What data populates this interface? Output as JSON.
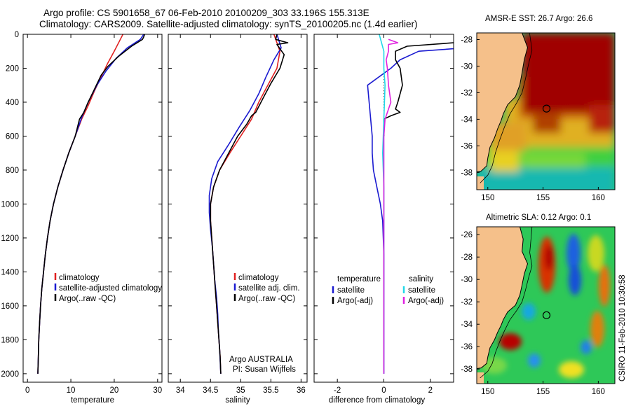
{
  "header": {
    "line1": "Argo profile: CS 5901658_67 06-Feb-2010 20100209_303 33.196S 155.313E",
    "line2": "Climatology: CARS2009. Satellite-adjusted climatology: synTS_20100205.nc (1.4d earlier)"
  },
  "colors": {
    "climatology": "#e02020",
    "satellite": "#1a1ad0",
    "argo": "#000000",
    "sal_satellite": "#20d8e8",
    "sal_argo": "#e020e0",
    "land": "#f5c08a"
  },
  "chart_data": [
    {
      "type": "line",
      "name": "temperature-profile",
      "xlabel": "temperature",
      "xlim": [
        -1,
        31
      ],
      "ylim": [
        2050,
        0
      ],
      "xticks": [
        0,
        10,
        20,
        30
      ],
      "xtick_labels": [
        "0",
        "10",
        "20",
        "30"
      ],
      "yticks": [
        0,
        200,
        400,
        600,
        800,
        1000,
        1200,
        1400,
        1600,
        1800,
        2000
      ],
      "ytick_labels": [
        "0",
        "200",
        "400",
        "600",
        "800",
        "1000",
        "1200",
        "1400",
        "1600",
        "1800",
        "2000"
      ],
      "legend": [
        "climatology",
        "satellite-adjusted climatology",
        "Argo(..raw -QC)"
      ],
      "series": [
        {
          "name": "climatology",
          "color": "red",
          "points": [
            [
              22,
              0
            ],
            [
              21.2,
              40
            ],
            [
              20,
              100
            ],
            [
              18.5,
              170
            ],
            [
              17,
              250
            ],
            [
              15.5,
              330
            ],
            [
              14,
              420
            ],
            [
              12.5,
              500
            ],
            [
              11,
              600
            ],
            [
              9.5,
              700
            ],
            [
              8.2,
              800
            ],
            [
              7,
              900
            ],
            [
              6,
              1000
            ],
            [
              5.2,
              1100
            ],
            [
              4.6,
              1200
            ],
            [
              4.1,
              1300
            ],
            [
              3.7,
              1400
            ],
            [
              3.3,
              1500
            ],
            [
              3.0,
              1600
            ],
            [
              2.8,
              1700
            ],
            [
              2.6,
              1800
            ],
            [
              2.5,
              1900
            ],
            [
              2.4,
              2000
            ]
          ]
        },
        {
          "name": "satellite-adjusted climatology",
          "color": "blue",
          "points": [
            [
              26.8,
              0
            ],
            [
              26,
              30
            ],
            [
              23,
              80
            ],
            [
              20.5,
              140
            ],
            [
              18,
              220
            ],
            [
              16,
              300
            ],
            [
              14,
              400
            ],
            [
              12.5,
              490
            ],
            [
              11,
              600
            ],
            [
              9.5,
              700
            ],
            [
              8.2,
              800
            ],
            [
              7,
              900
            ],
            [
              6,
              1000
            ],
            [
              5.2,
              1100
            ],
            [
              4.6,
              1200
            ],
            [
              4.1,
              1300
            ],
            [
              3.7,
              1400
            ],
            [
              3.3,
              1500
            ],
            [
              3.0,
              1600
            ],
            [
              2.8,
              1700
            ],
            [
              2.6,
              1800
            ],
            [
              2.5,
              1900
            ],
            [
              2.4,
              2000
            ]
          ]
        },
        {
          "name": "Argo(..raw -QC)",
          "color": "black",
          "points": [
            [
              27,
              0
            ],
            [
              26.8,
              15
            ],
            [
              26.5,
              30
            ],
            [
              24,
              70
            ],
            [
              21,
              130
            ],
            [
              18.5,
              190
            ],
            [
              17,
              240
            ],
            [
              15.5,
              320
            ],
            [
              14,
              400
            ],
            [
              13,
              460
            ],
            [
              12,
              500
            ],
            [
              11,
              600
            ],
            [
              9.5,
              700
            ],
            [
              8.2,
              800
            ],
            [
              7,
              900
            ],
            [
              6,
              1000
            ],
            [
              5.2,
              1100
            ],
            [
              4.6,
              1200
            ],
            [
              4.1,
              1300
            ],
            [
              3.7,
              1400
            ],
            [
              3.3,
              1500
            ],
            [
              3.0,
              1600
            ],
            [
              2.8,
              1700
            ],
            [
              2.6,
              1800
            ],
            [
              2.5,
              1900
            ],
            [
              2.4,
              2000
            ]
          ]
        }
      ]
    },
    {
      "type": "line",
      "name": "salinity-profile",
      "xlabel": "salinity",
      "xlim": [
        33.8,
        36.1
      ],
      "ylim": [
        2050,
        0
      ],
      "xticks": [
        34,
        34.5,
        35,
        35.5,
        36
      ],
      "xtick_labels": [
        "34",
        "34.5",
        "35",
        "35.5",
        "36"
      ],
      "legend": [
        "climatology",
        "satellite adj. clim.",
        "Argo(..raw -QC)"
      ],
      "annotation": [
        "Argo AUSTRALIA",
        "PI: Susan Wijffels"
      ],
      "series": [
        {
          "name": "climatology",
          "color": "red",
          "points": [
            [
              35.55,
              0
            ],
            [
              35.65,
              100
            ],
            [
              35.6,
              200
            ],
            [
              35.45,
              300
            ],
            [
              35.3,
              400
            ],
            [
              35.18,
              500
            ],
            [
              35.0,
              600
            ],
            [
              34.82,
              700
            ],
            [
              34.65,
              800
            ],
            [
              34.55,
              900
            ],
            [
              34.5,
              1000
            ],
            [
              34.5,
              1100
            ],
            [
              34.52,
              1200
            ],
            [
              34.54,
              1300
            ],
            [
              34.56,
              1400
            ],
            [
              34.58,
              1500
            ],
            [
              34.6,
              1600
            ],
            [
              34.62,
              1700
            ],
            [
              34.64,
              1800
            ],
            [
              34.66,
              1900
            ],
            [
              34.67,
              2000
            ]
          ]
        },
        {
          "name": "satellite adj. clim.",
          "color": "blue",
          "points": [
            [
              35.6,
              0
            ],
            [
              35.67,
              80
            ],
            [
              35.55,
              150
            ],
            [
              35.42,
              250
            ],
            [
              35.3,
              350
            ],
            [
              35.15,
              450
            ],
            [
              34.97,
              550
            ],
            [
              34.8,
              650
            ],
            [
              34.62,
              750
            ],
            [
              34.52,
              850
            ],
            [
              34.48,
              950
            ],
            [
              34.48,
              1050
            ],
            [
              34.5,
              1150
            ],
            [
              34.53,
              1250
            ],
            [
              34.55,
              1350
            ],
            [
              34.57,
              1450
            ],
            [
              34.6,
              1550
            ],
            [
              34.62,
              1650
            ],
            [
              34.63,
              1750
            ],
            [
              34.65,
              1850
            ],
            [
              34.67,
              2000
            ]
          ]
        },
        {
          "name": "Argo(..raw -QC)",
          "color": "black",
          "points": [
            [
              35.6,
              0
            ],
            [
              35.58,
              30
            ],
            [
              35.78,
              50
            ],
            [
              35.6,
              60
            ],
            [
              35.72,
              120
            ],
            [
              35.65,
              200
            ],
            [
              35.5,
              290
            ],
            [
              35.38,
              370
            ],
            [
              35.25,
              460
            ],
            [
              35.18,
              480
            ],
            [
              35.1,
              530
            ],
            [
              34.95,
              600
            ],
            [
              34.8,
              700
            ],
            [
              34.65,
              800
            ],
            [
              34.55,
              900
            ],
            [
              34.5,
              1000
            ],
            [
              34.5,
              1100
            ],
            [
              34.52,
              1200
            ],
            [
              34.54,
              1300
            ],
            [
              34.56,
              1400
            ],
            [
              34.58,
              1500
            ],
            [
              34.6,
              1600
            ],
            [
              34.62,
              1700
            ],
            [
              34.64,
              1800
            ],
            [
              34.66,
              1900
            ],
            [
              34.67,
              2000
            ]
          ]
        }
      ]
    },
    {
      "type": "line",
      "name": "difference-profile",
      "xlabel": "difference from climatology",
      "xlim": [
        -3,
        3
      ],
      "ylim": [
        2050,
        0
      ],
      "xticks": [
        -2,
        0,
        2
      ],
      "xtick_labels": [
        "-2",
        "0",
        "2"
      ],
      "legend_headers": [
        "temperature",
        "salinity"
      ],
      "legend_temperature": [
        "satellite",
        "Argo(-adj)"
      ],
      "legend_salinity": [
        "satellite",
        "Argo(-adj)"
      ],
      "series": [
        {
          "name": "temperature satellite",
          "color": "blue",
          "points": [
            [
              4.8,
              0
            ],
            [
              3.5,
              80
            ],
            [
              1.5,
              100
            ],
            [
              0.7,
              150
            ],
            [
              0.3,
              200
            ],
            [
              -0.7,
              300
            ],
            [
              -0.6,
              450
            ],
            [
              -0.5,
              600
            ],
            [
              -0.5,
              700
            ],
            [
              -0.45,
              800
            ],
            [
              -0.3,
              900
            ],
            [
              -0.15,
              1000
            ],
            [
              -0.05,
              1100
            ],
            [
              0,
              1300
            ],
            [
              0,
              1500
            ],
            [
              0,
              1800
            ],
            [
              0,
              2000
            ]
          ]
        },
        {
          "name": "temperature Argo(-adj)",
          "color": "black",
          "points": [
            [
              3,
              50
            ],
            [
              1,
              70
            ],
            [
              0.5,
              100
            ],
            [
              0.5,
              150
            ],
            [
              0.7,
              200
            ],
            [
              0.8,
              300
            ],
            [
              0.6,
              400
            ],
            [
              0.5,
              440
            ],
            [
              0.7,
              460
            ],
            [
              0.3,
              480
            ],
            [
              0,
              500
            ],
            [
              0,
              600
            ]
          ]
        },
        {
          "name": "salinity satellite",
          "color": "cyan",
          "points": [
            [
              -0.2,
              0
            ],
            [
              0,
              100
            ],
            [
              0,
              200
            ],
            [
              0.05,
              300
            ],
            [
              0,
              500
            ],
            [
              -0.05,
              700
            ],
            [
              0,
              900
            ],
            [
              0,
              1100
            ],
            [
              0,
              1300
            ],
            [
              0,
              1500
            ],
            [
              0,
              1700
            ],
            [
              0,
              1900
            ],
            [
              0,
              2000
            ]
          ]
        },
        {
          "name": "salinity Argo(-adj)",
          "color": "magenta",
          "points": [
            [
              0.2,
              30
            ],
            [
              0.6,
              50
            ],
            [
              0.2,
              60
            ],
            [
              0.2,
              100
            ],
            [
              0.1,
              150
            ],
            [
              0.15,
              200
            ],
            [
              0.2,
              300
            ],
            [
              0.3,
              400
            ],
            [
              0.05,
              500
            ],
            [
              0,
              600
            ],
            [
              0,
              800
            ],
            [
              0,
              1000
            ],
            [
              0,
              1300
            ],
            [
              0,
              1600
            ],
            [
              0,
              2000
            ]
          ]
        }
      ]
    },
    {
      "type": "heatmap",
      "name": "sst-map",
      "title": "AMSR-E SST: 26.7 Argo: 26.6",
      "xlim": [
        149,
        161.5
      ],
      "ylim": [
        -39.3,
        -27.5
      ],
      "xticks": [
        150,
        155,
        160
      ],
      "xtick_labels": [
        "150",
        "155",
        "160"
      ],
      "yticks": [
        -28,
        -30,
        -32,
        -34,
        -36,
        -38
      ],
      "ytick_labels": [
        "-28",
        "-30",
        "-32",
        "-34",
        "-36",
        "-38"
      ],
      "marker": {
        "lon": 155.313,
        "lat": -33.196
      }
    },
    {
      "type": "heatmap",
      "name": "sla-map",
      "title": "Altimetric SLA: 0.12 Argo: 0.1",
      "xlim": [
        149,
        161.5
      ],
      "ylim": [
        -39.3,
        -25.3
      ],
      "xticks": [
        150,
        155,
        160
      ],
      "xtick_labels": [
        "150",
        "155",
        "160"
      ],
      "yticks": [
        -26,
        -28,
        -30,
        -32,
        -34,
        -36,
        -38
      ],
      "ytick_labels": [
        "-26",
        "-28",
        "-30",
        "-32",
        "-34",
        "-36",
        "-38"
      ],
      "marker": {
        "lon": 155.313,
        "lat": -33.196
      }
    }
  ],
  "footer": "CSIRO 11-Feb-2010 10:30:58"
}
